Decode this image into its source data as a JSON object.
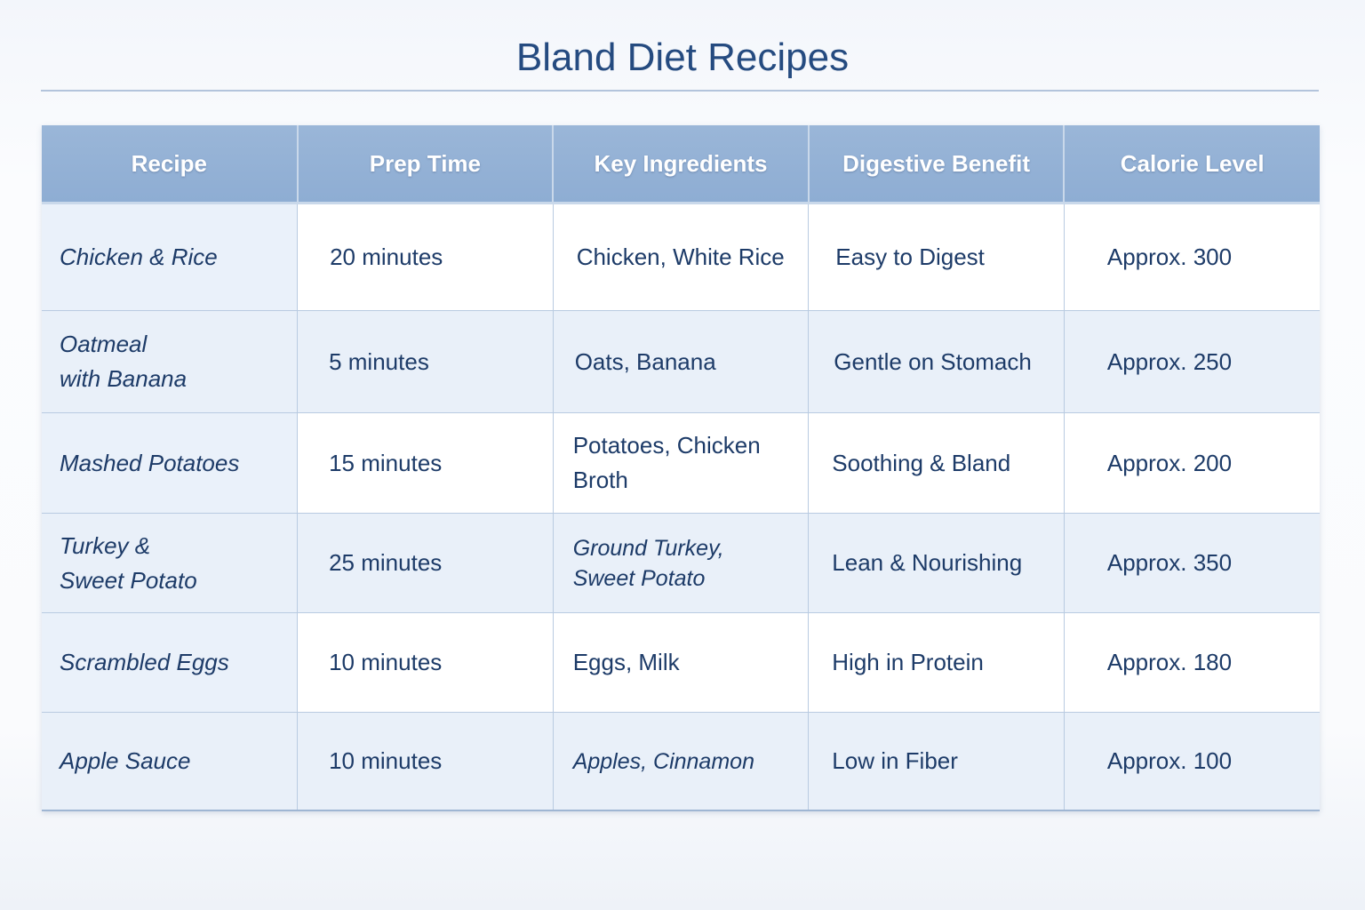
{
  "title": "Bland Diet Recipes",
  "columns": [
    "Recipe",
    "Prep Time",
    "Key Ingredients",
    "Digestive Benefit",
    "Calorie Level"
  ],
  "rows": [
    {
      "recipe": "Chicken & Rice",
      "prep": "20 minutes",
      "ingredients": "Chicken, White Rice",
      "benefit": "Easy to Digest",
      "calories": "Approx. 300"
    },
    {
      "recipe": "Oatmeal\nwith Banana",
      "prep": "5 minutes",
      "ingredients": "Oats, Banana",
      "benefit": "Gentle on Stomach",
      "calories": "Approx. 250"
    },
    {
      "recipe": "Mashed Potatoes",
      "prep": "15 minutes",
      "ingredients": "Potatoes, Chicken Broth",
      "benefit": "Soothing & Bland",
      "calories": "Approx. 200"
    },
    {
      "recipe": "Turkey &\nSweet Potato",
      "prep": "25 minutes",
      "ingredients": "Ground Turkey,\nSweet Potato",
      "benefit": "Lean & Nourishing",
      "calories": "Approx. 350"
    },
    {
      "recipe": "Scrambled Eggs",
      "prep": "10 minutes",
      "ingredients": "Eggs, Milk",
      "benefit": "High in Protein",
      "calories": "Approx. 180"
    },
    {
      "recipe": "Apple Sauce",
      "prep": "10 minutes",
      "ingredients": "Apples, Cinnamon",
      "benefit": "Low in Fiber",
      "calories": "Approx. 100"
    }
  ]
}
